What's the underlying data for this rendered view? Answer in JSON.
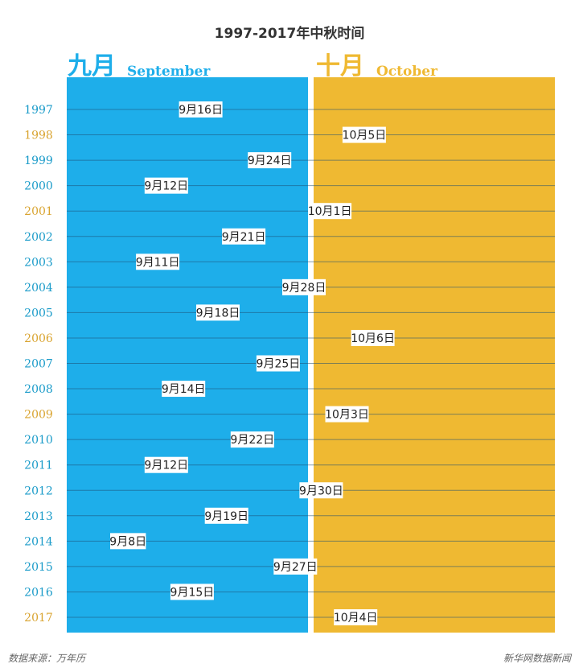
{
  "colors": {
    "september": "#1eaeea",
    "october": "#efb932",
    "year_sep": "#1a9bc9",
    "year_oct": "#d9a430",
    "row_line": "#1e4f73",
    "label_bg": "#ffffff"
  },
  "footer": {
    "source": "数据来源：万年历",
    "credit": "新华网数据新闻"
  },
  "chart_data": {
    "type": "scatter",
    "title": "1997-2017年中秋时间",
    "months": [
      {
        "cn": "九月",
        "en": "September"
      },
      {
        "cn": "十月",
        "en": "October"
      }
    ],
    "points": [
      {
        "year": "1997",
        "month": 9,
        "day": 16,
        "label": "9月16日"
      },
      {
        "year": "1998",
        "month": 10,
        "day": 5,
        "label": "10月5日"
      },
      {
        "year": "1999",
        "month": 9,
        "day": 24,
        "label": "9月24日"
      },
      {
        "year": "2000",
        "month": 9,
        "day": 12,
        "label": "9月12日"
      },
      {
        "year": "2001",
        "month": 10,
        "day": 1,
        "label": "10月1日"
      },
      {
        "year": "2002",
        "month": 9,
        "day": 21,
        "label": "9月21日"
      },
      {
        "year": "2003",
        "month": 9,
        "day": 11,
        "label": "9月11日"
      },
      {
        "year": "2004",
        "month": 9,
        "day": 28,
        "label": "9月28日"
      },
      {
        "year": "2005",
        "month": 9,
        "day": 18,
        "label": "9月18日"
      },
      {
        "year": "2006",
        "month": 10,
        "day": 6,
        "label": "10月6日"
      },
      {
        "year": "2007",
        "month": 9,
        "day": 25,
        "label": "9月25日"
      },
      {
        "year": "2008",
        "month": 9,
        "day": 14,
        "label": "9月14日"
      },
      {
        "year": "2009",
        "month": 10,
        "day": 3,
        "label": "10月3日"
      },
      {
        "year": "2010",
        "month": 9,
        "day": 22,
        "label": "9月22日"
      },
      {
        "year": "2011",
        "month": 9,
        "day": 12,
        "label": "9月12日"
      },
      {
        "year": "2012",
        "month": 9,
        "day": 30,
        "label": "9月30日"
      },
      {
        "year": "2013",
        "month": 9,
        "day": 19,
        "label": "9月19日"
      },
      {
        "year": "2014",
        "month": 9,
        "day": 8,
        "label": "9月8日"
      },
      {
        "year": "2015",
        "month": 9,
        "day": 27,
        "label": "9月27日"
      },
      {
        "year": "2016",
        "month": 9,
        "day": 15,
        "label": "9月15日"
      },
      {
        "year": "2017",
        "month": 10,
        "day": 4,
        "label": "10月4日"
      }
    ],
    "x_range": [
      "9月8日",
      "10月6日"
    ],
    "grid": true
  }
}
